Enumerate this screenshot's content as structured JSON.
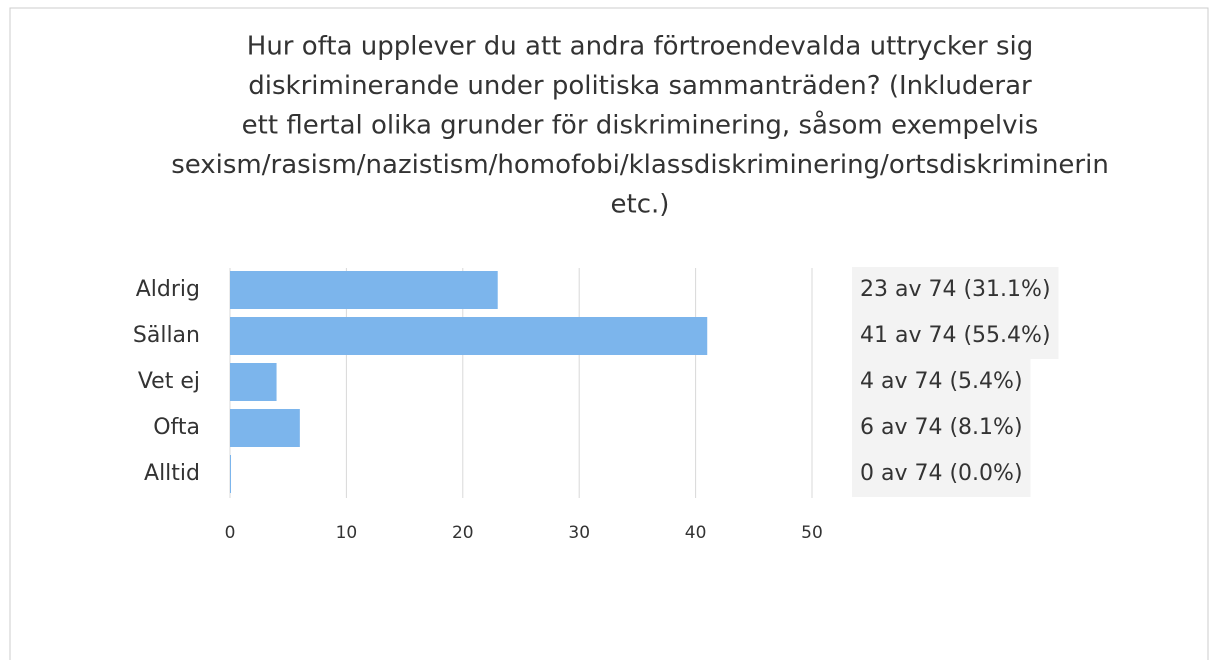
{
  "chart_data": {
    "type": "bar",
    "orientation": "horizontal",
    "title_lines": [
      "Hur ofta upplever du att andra förtroendevalda uttrycker sig",
      "diskriminerande under politiska sammanträden? (Inkluderar",
      "ett flertal olika grunder för diskriminering, såsom exempelvis",
      "sexism/rasism/nazistism/homofobi/klassdiskriminering/ortsdiskriminerin",
      "etc.)"
    ],
    "categories": [
      "Aldrig",
      "Sällan",
      "Vet ej",
      "Ofta",
      "Alltid"
    ],
    "values": [
      23,
      41,
      4,
      6,
      0
    ],
    "value_labels": [
      "23 av 74 (31.1%)",
      "41 av 74 (55.4%)",
      "4 av 74 (5.4%)",
      "6 av 74 (8.1%)",
      "0 av 74 (0.0%)"
    ],
    "color": "#7cb5ec",
    "xlim": [
      0,
      50
    ],
    "xticks": [
      0,
      10,
      20,
      30,
      40,
      50
    ],
    "grid": true
  }
}
